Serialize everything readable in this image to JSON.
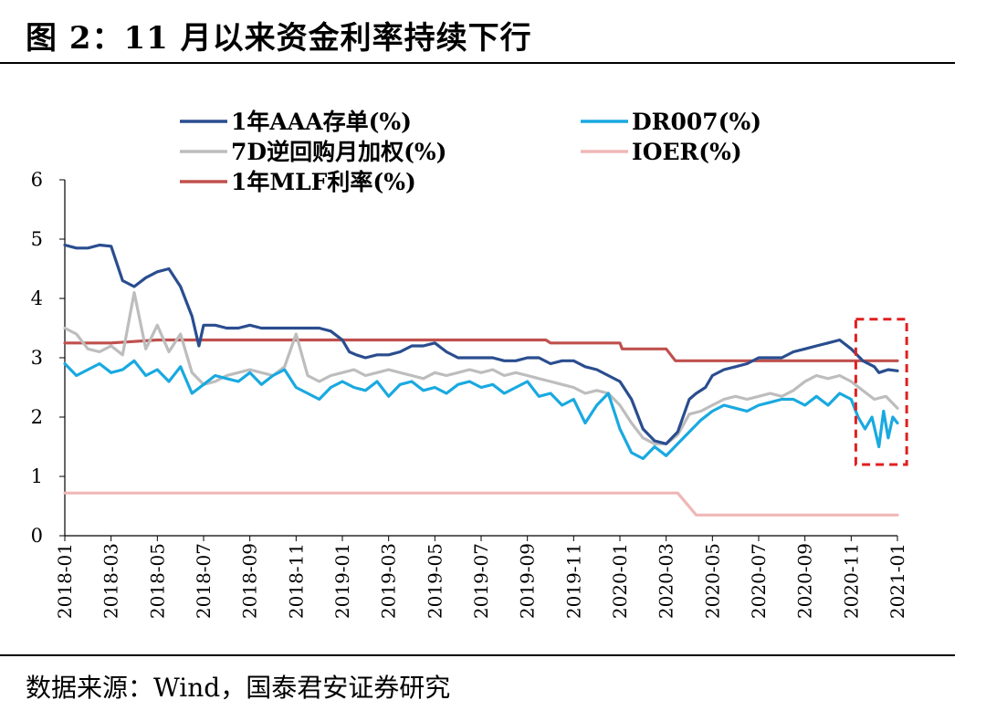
{
  "title": "图 2：11 月以来资金利率持续下行",
  "source": "数据来源：Wind，国泰君安证券研究",
  "chart_data": {
    "type": "line",
    "title": "图 2：11 月以来资金利率持续下行",
    "xlabel": "",
    "ylabel": "",
    "ylim": [
      0,
      6
    ],
    "yticks": [
      "0",
      "1",
      "2",
      "3",
      "4",
      "5",
      "6"
    ],
    "xlim": [
      0,
      36
    ],
    "xticks": [
      "2018-01",
      "2018-03",
      "2018-05",
      "2018-07",
      "2018-09",
      "2018-11",
      "2019-01",
      "2019-03",
      "2019-05",
      "2019-07",
      "2019-09",
      "2019-11",
      "2020-01",
      "2020-03",
      "2020-05",
      "2020-07",
      "2020-09",
      "2020-11",
      "2021-01"
    ],
    "grid": false,
    "legend_position": "top",
    "highlight": {
      "label": "2020-11 to 2021-01",
      "x_range": [
        34.2,
        36.4
      ],
      "y_range": [
        1.2,
        3.65
      ],
      "color": "#e02020"
    },
    "series": [
      {
        "name": "1年AAA存单(%)",
        "color": "#2a4d8f",
        "x": [
          0,
          0.5,
          1,
          1.5,
          2,
          2.5,
          3,
          3.5,
          4,
          4.5,
          5,
          5.5,
          5.8,
          6,
          6.5,
          7,
          7.5,
          8,
          8.5,
          9,
          9.5,
          10,
          10.5,
          11,
          11.5,
          12,
          12.3,
          12.6,
          13,
          13.5,
          14,
          14.5,
          15,
          15.5,
          16,
          16.5,
          17,
          17.5,
          18,
          18.5,
          19,
          19.5,
          20,
          20.5,
          21,
          21.5,
          22,
          22.5,
          23,
          23.5,
          24,
          24.5,
          25,
          25.5,
          26,
          26.5,
          27,
          27.3,
          27.7,
          28,
          28.5,
          29,
          29.5,
          30,
          30.5,
          31,
          31.5,
          32,
          32.5,
          33,
          33.5,
          34,
          34.5,
          35,
          35.2,
          35.6,
          36
        ],
        "values": [
          4.9,
          4.85,
          4.85,
          4.9,
          4.88,
          4.3,
          4.2,
          4.35,
          4.45,
          4.5,
          4.2,
          3.7,
          3.2,
          3.55,
          3.55,
          3.5,
          3.5,
          3.55,
          3.5,
          3.5,
          3.5,
          3.5,
          3.5,
          3.5,
          3.45,
          3.3,
          3.1,
          3.05,
          3.0,
          3.05,
          3.05,
          3.1,
          3.2,
          3.2,
          3.25,
          3.1,
          3.0,
          3.0,
          3.0,
          3.0,
          2.95,
          2.95,
          3.0,
          3.0,
          2.9,
          2.95,
          2.95,
          2.85,
          2.8,
          2.7,
          2.6,
          2.3,
          1.8,
          1.6,
          1.55,
          1.75,
          2.3,
          2.4,
          2.5,
          2.7,
          2.8,
          2.85,
          2.9,
          3.0,
          3.0,
          3.0,
          3.1,
          3.15,
          3.2,
          3.25,
          3.3,
          3.15,
          2.95,
          2.85,
          2.75,
          2.8,
          2.78
        ]
      },
      {
        "name": "DR007(%)",
        "color": "#19a9e0",
        "x": [
          0,
          0.5,
          1,
          1.5,
          2,
          2.5,
          3,
          3.5,
          4,
          4.5,
          5,
          5.5,
          6,
          6.5,
          7,
          7.5,
          8,
          8.5,
          9,
          9.5,
          10,
          10.5,
          11,
          11.5,
          12,
          12.5,
          13,
          13.5,
          14,
          14.5,
          15,
          15.5,
          16,
          16.5,
          17,
          17.5,
          18,
          18.5,
          19,
          19.5,
          20,
          20.5,
          21,
          21.5,
          22,
          22.5,
          23,
          23.5,
          24,
          24.5,
          25,
          25.5,
          26,
          26.5,
          27,
          27.5,
          28,
          28.5,
          29,
          29.5,
          30,
          30.5,
          31,
          31.5,
          32,
          32.5,
          33,
          33.5,
          34,
          34.3,
          34.6,
          34.9,
          35.2,
          35.4,
          35.6,
          35.8,
          36
        ],
        "values": [
          2.9,
          2.7,
          2.8,
          2.9,
          2.75,
          2.8,
          2.95,
          2.7,
          2.8,
          2.6,
          2.85,
          2.4,
          2.55,
          2.7,
          2.65,
          2.6,
          2.75,
          2.55,
          2.7,
          2.8,
          2.5,
          2.4,
          2.3,
          2.5,
          2.6,
          2.5,
          2.45,
          2.6,
          2.35,
          2.55,
          2.6,
          2.45,
          2.5,
          2.4,
          2.55,
          2.6,
          2.5,
          2.55,
          2.4,
          2.5,
          2.6,
          2.35,
          2.4,
          2.2,
          2.3,
          1.9,
          2.2,
          2.4,
          1.8,
          1.4,
          1.3,
          1.5,
          1.35,
          1.55,
          1.75,
          1.95,
          2.1,
          2.2,
          2.15,
          2.1,
          2.2,
          2.25,
          2.3,
          2.3,
          2.2,
          2.35,
          2.2,
          2.4,
          2.3,
          2.0,
          1.8,
          2.0,
          1.5,
          2.1,
          1.65,
          2.0,
          1.9
        ]
      },
      {
        "name": "7D逆回购月加权(%)",
        "color": "#bdbdbd",
        "x": [
          0,
          0.5,
          1,
          1.5,
          2,
          2.5,
          3,
          3.5,
          4,
          4.5,
          5,
          5.5,
          6,
          6.5,
          7,
          7.5,
          8,
          8.5,
          9,
          9.5,
          10,
          10.5,
          11,
          11.5,
          12,
          12.5,
          13,
          13.5,
          14,
          14.5,
          15,
          15.5,
          16,
          16.5,
          17,
          17.5,
          18,
          18.5,
          19,
          19.5,
          20,
          20.5,
          21,
          21.5,
          22,
          22.5,
          23,
          23.5,
          24,
          24.5,
          25,
          25.5,
          26,
          26.5,
          27,
          27.5,
          28,
          28.5,
          29,
          29.5,
          30,
          30.5,
          31,
          31.5,
          32,
          32.5,
          33,
          33.5,
          34,
          34.5,
          35,
          35.5,
          36
        ],
        "values": [
          3.5,
          3.4,
          3.15,
          3.1,
          3.2,
          3.05,
          4.1,
          3.15,
          3.55,
          3.1,
          3.4,
          2.75,
          2.55,
          2.6,
          2.7,
          2.75,
          2.8,
          2.75,
          2.7,
          2.85,
          3.4,
          2.7,
          2.6,
          2.7,
          2.75,
          2.8,
          2.7,
          2.75,
          2.8,
          2.75,
          2.7,
          2.65,
          2.75,
          2.7,
          2.75,
          2.8,
          2.75,
          2.8,
          2.7,
          2.75,
          2.7,
          2.65,
          2.6,
          2.55,
          2.5,
          2.4,
          2.45,
          2.4,
          2.2,
          1.9,
          1.65,
          1.55,
          1.55,
          1.7,
          2.05,
          2.1,
          2.2,
          2.3,
          2.35,
          2.3,
          2.35,
          2.4,
          2.35,
          2.45,
          2.6,
          2.7,
          2.65,
          2.7,
          2.6,
          2.45,
          2.3,
          2.35,
          2.15
        ]
      },
      {
        "name": "IOER(%)",
        "color": "#f0b7b7",
        "x": [
          0,
          26.5,
          27.3,
          36
        ],
        "values": [
          0.72,
          0.72,
          0.35,
          0.35
        ]
      },
      {
        "name": "1年MLF利率(%)",
        "color": "#c0504d",
        "x": [
          0,
          2,
          4,
          20.8,
          21,
          24,
          24.1,
          26,
          26.4,
          36
        ],
        "values": [
          3.25,
          3.25,
          3.3,
          3.3,
          3.25,
          3.25,
          3.15,
          3.15,
          2.95,
          2.95
        ]
      }
    ]
  }
}
